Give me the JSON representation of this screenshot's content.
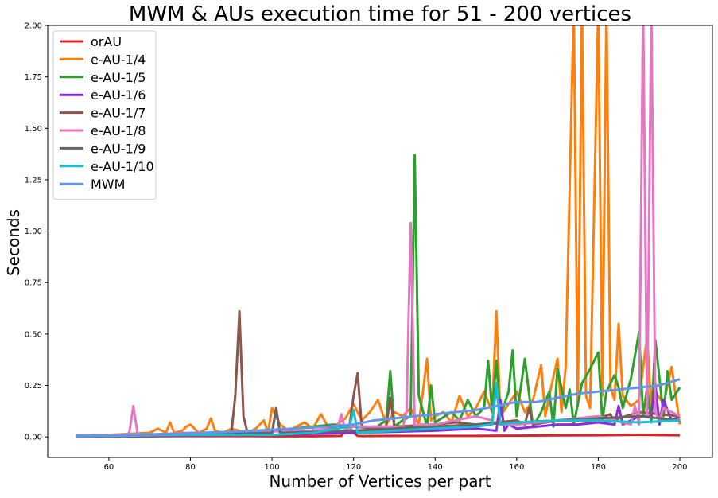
{
  "chart_data": {
    "type": "line",
    "title": "MWM & AUs execution time for 51 - 200 vertices",
    "xlabel": "Number of Vertices per part",
    "ylabel": "Seconds",
    "xlim": [
      45,
      208
    ],
    "ylim": [
      -0.1,
      2.0
    ],
    "xticks": [
      60,
      80,
      100,
      120,
      140,
      160,
      180,
      200
    ],
    "xtick_labels": [
      "60",
      "80",
      "100",
      "120",
      "140",
      "160",
      "180",
      "200"
    ],
    "yticks": [
      0.0,
      0.25,
      0.5,
      0.75,
      1.0,
      1.25,
      1.5,
      1.75,
      2.0
    ],
    "ytick_labels": [
      "0.00",
      "0.25",
      "0.50",
      "0.75",
      "1.00",
      "1.25",
      "1.50",
      "1.75",
      "2.00"
    ],
    "grid": false,
    "legend_position": "top-left",
    "series": [
      {
        "name": "orAU",
        "color": "#d62728",
        "x": [
          52,
          60,
          70,
          80,
          90,
          95,
          100,
          110,
          117,
          118,
          119,
          120,
          121,
          122,
          130,
          140,
          150,
          160,
          170,
          180,
          190,
          200
        ],
        "y": [
          0.002,
          0.003,
          0.003,
          0.004,
          0.004,
          0.004,
          0.003,
          0.003,
          0.005,
          0.03,
          0.045,
          0.02,
          0.005,
          0.004,
          0.005,
          0.005,
          0.005,
          0.006,
          0.007,
          0.008,
          0.01,
          0.008
        ]
      },
      {
        "name": "e-AU-1/4",
        "color": "#ff7f0e",
        "x": [
          52,
          60,
          70,
          72,
          74,
          75,
          76,
          78,
          79,
          80,
          82,
          84,
          85,
          86,
          88,
          90,
          92,
          94,
          96,
          98,
          99,
          100,
          102,
          104,
          106,
          108,
          110,
          112,
          114,
          116,
          118,
          120,
          122,
          124,
          126,
          128,
          130,
          132,
          134,
          136,
          138,
          139,
          140,
          142,
          144,
          146,
          148,
          150,
          152,
          154,
          155,
          156,
          158,
          160,
          162,
          164,
          166,
          167,
          168,
          170,
          171,
          172,
          174,
          175,
          176,
          177,
          178,
          180,
          181,
          182,
          183,
          184,
          185,
          186,
          188,
          190,
          192,
          193,
          194,
          196,
          198,
          200
        ],
        "y": [
          0.005,
          0.01,
          0.02,
          0.04,
          0.02,
          0.07,
          0.02,
          0.03,
          0.05,
          0.06,
          0.02,
          0.04,
          0.09,
          0.03,
          0.02,
          0.04,
          0.03,
          0.02,
          0.04,
          0.08,
          0.02,
          0.14,
          0.06,
          0.03,
          0.05,
          0.07,
          0.04,
          0.11,
          0.04,
          0.06,
          0.09,
          0.16,
          0.08,
          0.12,
          0.18,
          0.06,
          0.12,
          0.1,
          0.14,
          0.06,
          0.38,
          0.08,
          0.1,
          0.12,
          0.07,
          0.2,
          0.1,
          0.14,
          0.22,
          0.12,
          0.61,
          0.1,
          0.16,
          0.22,
          0.12,
          0.18,
          0.35,
          0.1,
          0.2,
          0.38,
          0.12,
          0.34,
          2.1,
          0.15,
          2.1,
          0.2,
          0.14,
          2.1,
          0.2,
          2.1,
          0.24,
          0.18,
          0.55,
          0.2,
          0.15,
          0.18,
          0.49,
          0.14,
          0.22,
          0.16,
          0.34,
          0.06
        ]
      },
      {
        "name": "e-AU-1/5",
        "color": "#2ca02c",
        "x": [
          52,
          80,
          100,
          110,
          115,
          120,
          125,
          128,
          129,
          130,
          132,
          134,
          135,
          136,
          138,
          139,
          140,
          144,
          146,
          148,
          150,
          152,
          153,
          154,
          155,
          156,
          158,
          159,
          160,
          162,
          164,
          166,
          168,
          169,
          170,
          172,
          173,
          174,
          176,
          178,
          180,
          181,
          182,
          184,
          185,
          186,
          188,
          190,
          191,
          192,
          193,
          194,
          196,
          197,
          198,
          200
        ],
        "y": [
          0.005,
          0.01,
          0.03,
          0.05,
          0.06,
          0.05,
          0.04,
          0.08,
          0.32,
          0.05,
          0.08,
          0.1,
          1.37,
          0.2,
          0.05,
          0.25,
          0.07,
          0.12,
          0.08,
          0.18,
          0.1,
          0.14,
          0.37,
          0.12,
          0.37,
          0.1,
          0.22,
          0.42,
          0.1,
          0.38,
          0.05,
          0.12,
          0.22,
          0.05,
          0.33,
          0.14,
          0.23,
          0.06,
          0.26,
          0.33,
          0.41,
          0.08,
          0.22,
          0.3,
          0.24,
          0.14,
          0.28,
          0.51,
          0.1,
          0.24,
          0.07,
          0.47,
          0.1,
          0.32,
          0.18,
          0.24
        ]
      },
      {
        "name": "e-AU-1/6",
        "color": "#8a2be2",
        "x": [
          52,
          100,
          120,
          140,
          150,
          155,
          156,
          157,
          158,
          160,
          165,
          170,
          175,
          180,
          184,
          185,
          186,
          188,
          190,
          193,
          194,
          195,
          196,
          198,
          200
        ],
        "y": [
          0.003,
          0.01,
          0.02,
          0.03,
          0.04,
          0.03,
          0.18,
          0.03,
          0.06,
          0.04,
          0.05,
          0.06,
          0.06,
          0.07,
          0.06,
          0.15,
          0.06,
          0.08,
          0.1,
          0.1,
          0.26,
          0.06,
          0.18,
          0.08,
          0.1
        ]
      },
      {
        "name": "e-AU-1/7",
        "color": "#8c564b",
        "x": [
          52,
          80,
          90,
          91,
          92,
          93,
          94,
          100,
          101,
          102,
          110,
          119,
          120,
          121,
          122,
          125,
          128,
          129,
          130,
          140,
          145,
          150,
          155,
          160,
          162,
          163,
          164,
          170,
          180,
          183,
          184,
          185,
          190,
          200
        ],
        "y": [
          0.005,
          0.01,
          0.01,
          0.2,
          0.61,
          0.1,
          0.02,
          0.02,
          0.14,
          0.02,
          0.03,
          0.05,
          0.2,
          0.31,
          0.05,
          0.04,
          0.05,
          0.19,
          0.05,
          0.06,
          0.07,
          0.06,
          0.07,
          0.08,
          0.06,
          0.14,
          0.06,
          0.08,
          0.09,
          0.11,
          0.07,
          0.09,
          0.12,
          0.1
        ]
      },
      {
        "name": "e-AU-1/8",
        "color": "#e377c2",
        "x": [
          52,
          64,
          65,
          66,
          67,
          68,
          80,
          110,
          116,
          117,
          118,
          120,
          130,
          132,
          133,
          134,
          135,
          136,
          140,
          150,
          154,
          155,
          156,
          160,
          170,
          180,
          188,
          189,
          190,
          191,
          192,
          193,
          194,
          195,
          196,
          200
        ],
        "y": [
          0.005,
          0.01,
          0.02,
          0.15,
          0.02,
          0.01,
          0.02,
          0.03,
          0.04,
          0.11,
          0.03,
          0.05,
          0.05,
          0.04,
          0.12,
          1.04,
          0.05,
          0.06,
          0.06,
          0.1,
          0.08,
          0.24,
          0.06,
          0.06,
          0.08,
          0.1,
          0.06,
          0.15,
          0.06,
          2.1,
          0.1,
          2.1,
          0.12,
          0.08,
          0.14,
          0.1
        ]
      },
      {
        "name": "e-AU-1/9",
        "color": "#666666",
        "x": [
          52,
          80,
          100,
          101,
          102,
          120,
          130,
          140,
          150,
          160,
          170,
          180,
          190,
          200
        ],
        "y": [
          0.004,
          0.01,
          0.02,
          0.13,
          0.02,
          0.03,
          0.04,
          0.05,
          0.06,
          0.07,
          0.08,
          0.09,
          0.1,
          0.08
        ]
      },
      {
        "name": "e-AU-1/10",
        "color": "#17becf",
        "x": [
          52,
          80,
          100,
          110,
          119,
          120,
          121,
          122,
          130,
          140,
          150,
          154,
          155,
          156,
          160,
          170,
          180,
          190,
          200
        ],
        "y": [
          0.003,
          0.01,
          0.01,
          0.02,
          0.05,
          0.13,
          0.02,
          0.02,
          0.03,
          0.04,
          0.05,
          0.06,
          0.26,
          0.06,
          0.07,
          0.08,
          0.08,
          0.07,
          0.08
        ]
      },
      {
        "name": "MWM",
        "color": "#6495ed",
        "x": [
          52,
          60,
          70,
          80,
          90,
          100,
          110,
          120,
          125,
          130,
          135,
          140,
          145,
          150,
          155,
          160,
          165,
          170,
          175,
          180,
          185,
          190,
          195,
          200
        ],
        "y": [
          0.005,
          0.008,
          0.012,
          0.018,
          0.025,
          0.035,
          0.045,
          0.06,
          0.08,
          0.09,
          0.1,
          0.11,
          0.12,
          0.13,
          0.15,
          0.17,
          0.17,
          0.19,
          0.21,
          0.22,
          0.23,
          0.24,
          0.25,
          0.28
        ]
      }
    ]
  }
}
